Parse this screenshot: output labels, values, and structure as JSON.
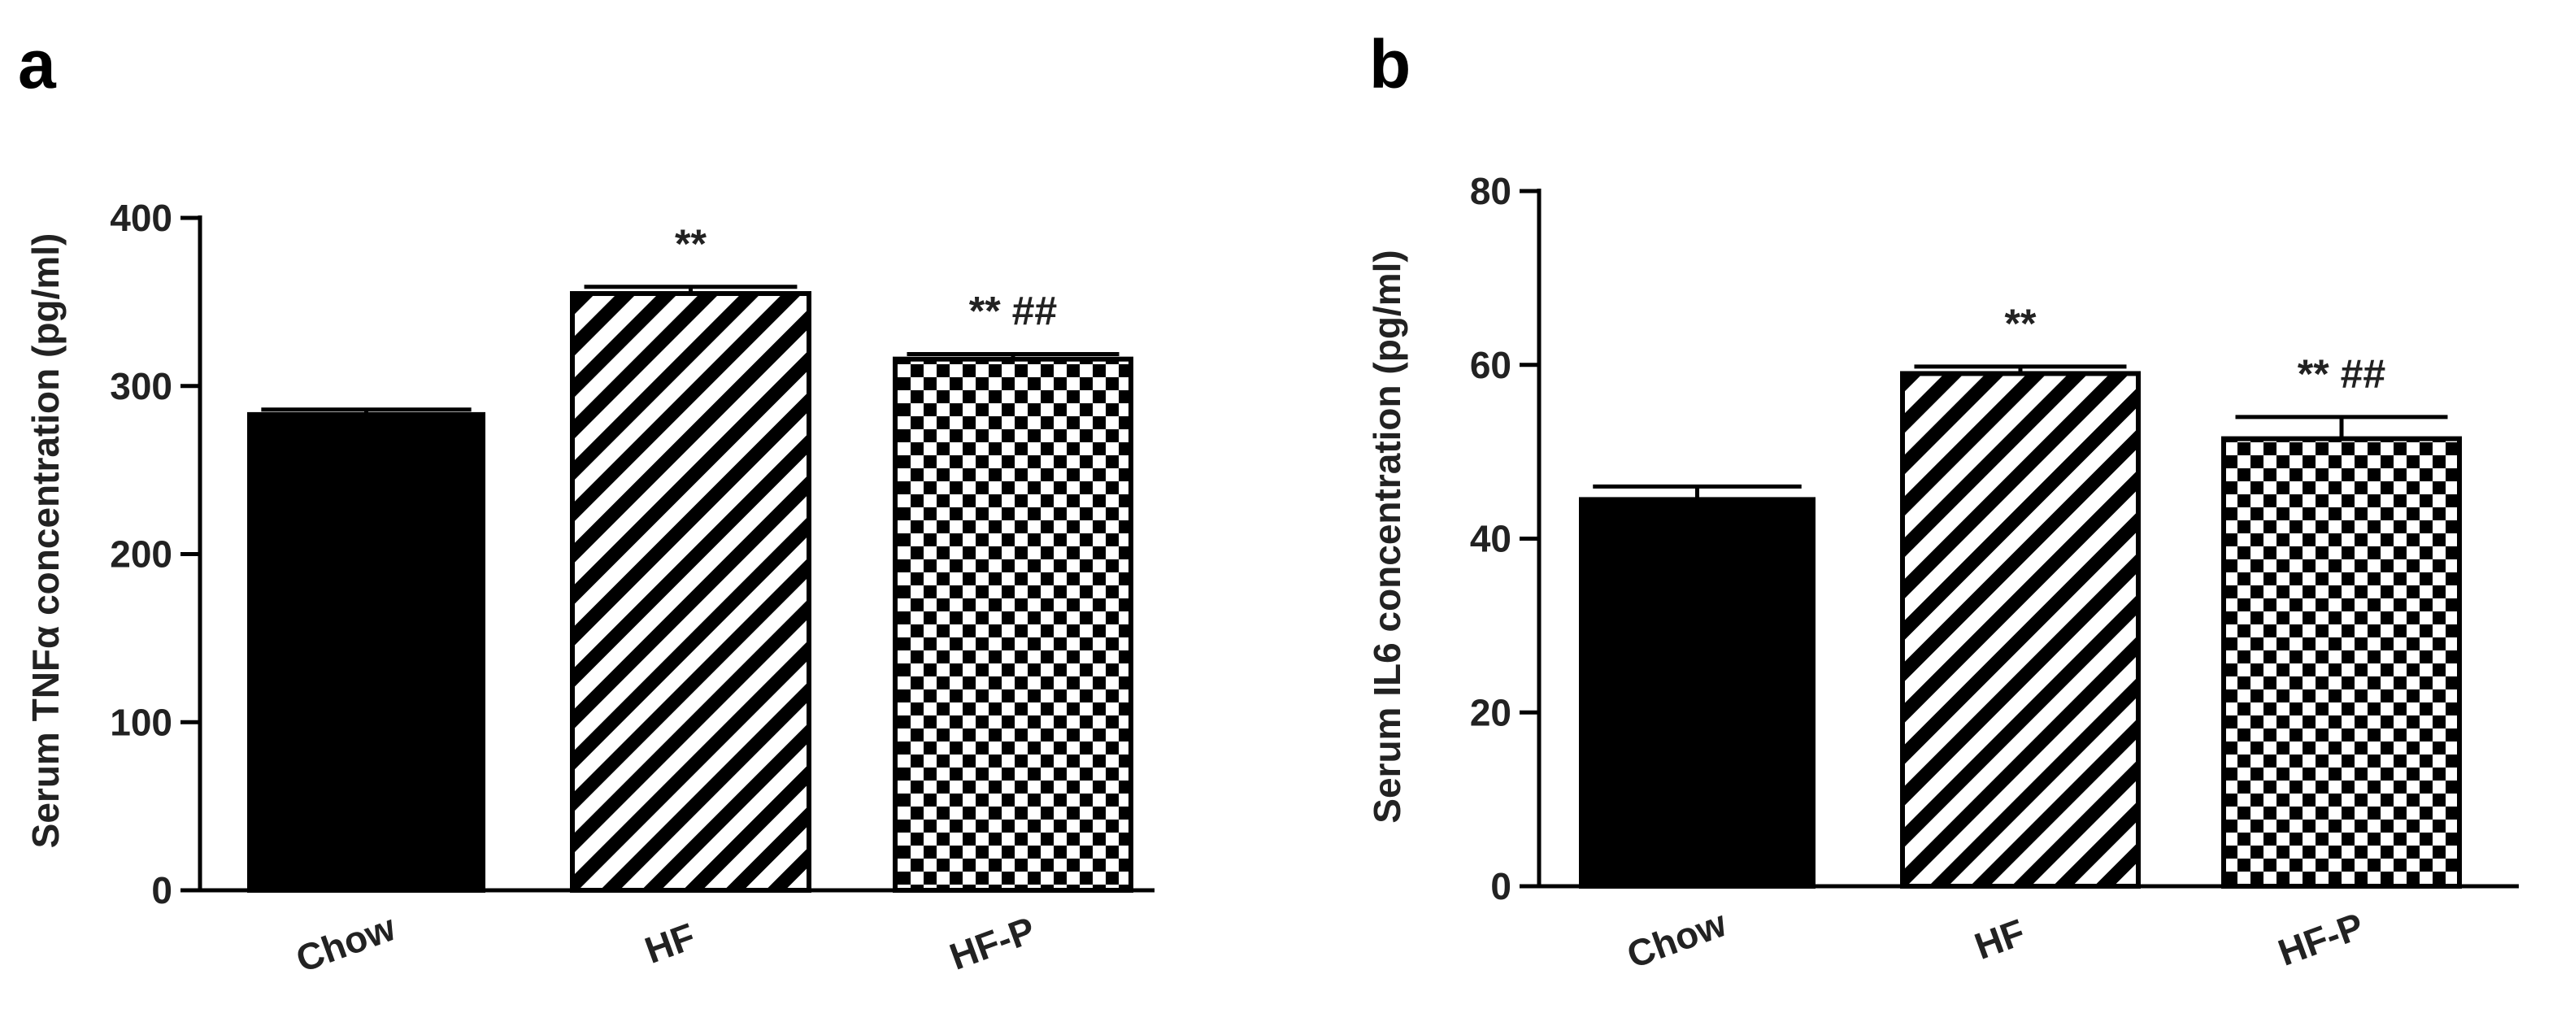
{
  "chart_data": [
    {
      "panel": "a",
      "type": "bar",
      "ylabel": "Serum TNFα concentration (pg/ml)",
      "xlabel": "",
      "ylim": [
        0,
        400
      ],
      "yticks": [
        0,
        100,
        200,
        300,
        400
      ],
      "categories": [
        "Chow",
        "HF",
        "HF-P"
      ],
      "values": [
        283,
        355,
        316
      ],
      "errors": [
        3,
        4,
        3
      ],
      "fills": [
        "solid",
        "hatch",
        "checker"
      ],
      "annotations": [
        "",
        "**",
        "**  ##"
      ],
      "grid": false,
      "legend": "none"
    },
    {
      "panel": "b",
      "type": "bar",
      "ylabel": "Serum IL6 concentration (pg/ml)",
      "xlabel": "",
      "ylim": [
        0,
        80
      ],
      "yticks": [
        0,
        20,
        40,
        60,
        80
      ],
      "categories": [
        "Chow",
        "HF",
        "HF-P"
      ],
      "values": [
        44.5,
        59,
        51.5
      ],
      "errors": [
        1.5,
        0.8,
        2.5
      ],
      "fills": [
        "solid",
        "hatch",
        "checker"
      ],
      "annotations": [
        "",
        "**",
        "**  ##"
      ],
      "grid": false,
      "legend": "none"
    }
  ]
}
